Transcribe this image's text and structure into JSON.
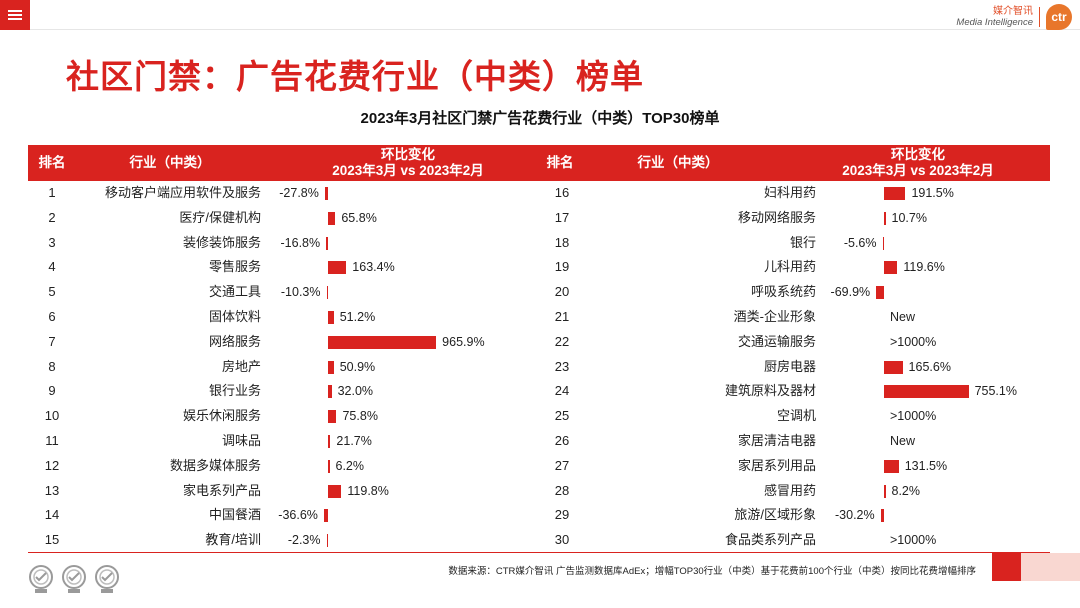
{
  "header": {
    "brand_cn": "媒介智讯",
    "brand_en": "Media Intelligence",
    "brand_logo_text": "ctr",
    "menu_icon": "hamburger-icon"
  },
  "page_title": "社区门禁：广告花费行业（中类）榜单",
  "chart_data": {
    "type": "bar",
    "title": "2023年3月社区门禁广告花费行业（中类）TOP30榜单",
    "columns": {
      "rank": "排名",
      "industry": "行业（中类）",
      "change_line1": "环比变化",
      "change_line2": "2023年3月 vs 2023年2月"
    },
    "bar_color": "#d9231f",
    "rows": [
      {
        "rank": 1,
        "industry": "移动客户端应用软件及服务",
        "change": -27.8,
        "label": "-27.8%"
      },
      {
        "rank": 2,
        "industry": "医疗/保健机构",
        "change": 65.8,
        "label": "65.8%"
      },
      {
        "rank": 3,
        "industry": "装修装饰服务",
        "change": -16.8,
        "label": "-16.8%"
      },
      {
        "rank": 4,
        "industry": "零售服务",
        "change": 163.4,
        "label": "163.4%"
      },
      {
        "rank": 5,
        "industry": "交通工具",
        "change": -10.3,
        "label": "-10.3%"
      },
      {
        "rank": 6,
        "industry": "固体饮料",
        "change": 51.2,
        "label": "51.2%"
      },
      {
        "rank": 7,
        "industry": "网络服务",
        "change": 965.9,
        "label": "965.9%"
      },
      {
        "rank": 8,
        "industry": "房地产",
        "change": 50.9,
        "label": "50.9%"
      },
      {
        "rank": 9,
        "industry": "银行业务",
        "change": 32.0,
        "label": "32.0%"
      },
      {
        "rank": 10,
        "industry": "娱乐休闲服务",
        "change": 75.8,
        "label": "75.8%"
      },
      {
        "rank": 11,
        "industry": "调味品",
        "change": 21.7,
        "label": "21.7%"
      },
      {
        "rank": 12,
        "industry": "数据多媒体服务",
        "change": 6.2,
        "label": "6.2%"
      },
      {
        "rank": 13,
        "industry": "家电系列产品",
        "change": 119.8,
        "label": "119.8%"
      },
      {
        "rank": 14,
        "industry": "中国餐酒",
        "change": -36.6,
        "label": "-36.6%"
      },
      {
        "rank": 15,
        "industry": "教育/培训",
        "change": -2.3,
        "label": "-2.3%"
      },
      {
        "rank": 16,
        "industry": "妇科用药",
        "change": 191.5,
        "label": "191.5%"
      },
      {
        "rank": 17,
        "industry": "移动网络服务",
        "change": 10.7,
        "label": "10.7%"
      },
      {
        "rank": 18,
        "industry": "银行",
        "change": -5.6,
        "label": "-5.6%"
      },
      {
        "rank": 19,
        "industry": "儿科用药",
        "change": 119.6,
        "label": "119.6%"
      },
      {
        "rank": 20,
        "industry": "呼吸系统药",
        "change": -69.9,
        "label": "-69.9%"
      },
      {
        "rank": 21,
        "industry": "酒类-企业形象",
        "change": null,
        "label": "New"
      },
      {
        "rank": 22,
        "industry": "交通运输服务",
        "change": null,
        "label": ">1000%"
      },
      {
        "rank": 23,
        "industry": "厨房电器",
        "change": 165.6,
        "label": "165.6%"
      },
      {
        "rank": 24,
        "industry": "建筑原料及器材",
        "change": 755.1,
        "label": "755.1%"
      },
      {
        "rank": 25,
        "industry": "空调机",
        "change": null,
        "label": ">1000%"
      },
      {
        "rank": 26,
        "industry": "家居清洁电器",
        "change": null,
        "label": "New"
      },
      {
        "rank": 27,
        "industry": "家居系列用品",
        "change": 131.5,
        "label": "131.5%"
      },
      {
        "rank": 28,
        "industry": "感冒用药",
        "change": 8.2,
        "label": "8.2%"
      },
      {
        "rank": 29,
        "industry": "旅游/区域形象",
        "change": -30.2,
        "label": "-30.2%"
      },
      {
        "rank": 30,
        "industry": "食品类系列产品",
        "change": null,
        "label": ">1000%"
      }
    ]
  },
  "footer": {
    "source_note": "数据来源：CTR媒介智讯 广告监测数据库AdEx；增幅TOP30行业（中类）基于花费前100个行业（中类）按同比花费增幅排序"
  }
}
